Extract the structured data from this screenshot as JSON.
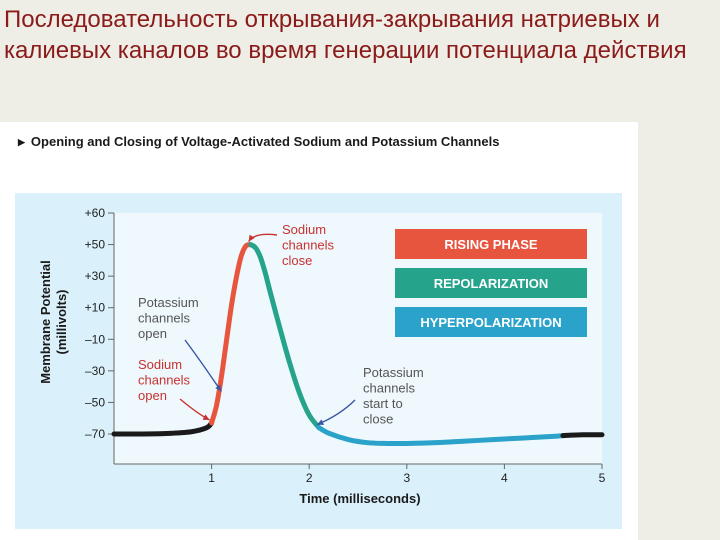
{
  "slide": {
    "title": "Последовательность открывания-закрывания натриевых и калиевых каналов во время генерации потенциала действия"
  },
  "figure": {
    "heading": "Opening and Closing of Voltage-Activated Sodium and Potassium Channels",
    "heading_marker_icon": "triangle-right-icon"
  },
  "chart_data": {
    "type": "line",
    "xlabel": "Time (milliseconds)",
    "ylabel_line1": "Membrane Potential",
    "ylabel_line2": "(millivolts)",
    "xlim": [
      0,
      5
    ],
    "ylim": [
      -80,
      60
    ],
    "x_ticks": [
      "1",
      "2",
      "3",
      "4",
      "5"
    ],
    "x_tick_values": [
      1,
      2,
      3,
      4,
      5
    ],
    "y_ticks": [
      "+60",
      "+50",
      "+30",
      "+10",
      "–10",
      "–30",
      "–50",
      "–70"
    ],
    "y_tick_values": [
      60,
      50,
      30,
      10,
      -10,
      -30,
      -50,
      -70
    ],
    "grid": false,
    "series": [
      {
        "segment": "resting",
        "color": "#1a1a1a",
        "x": [
          0,
          0.3,
          0.6,
          0.8,
          0.95,
          1.0
        ],
        "y": [
          -70,
          -70,
          -69.5,
          -68.5,
          -66,
          -63
        ]
      },
      {
        "segment": "rising",
        "color": "#e8553f",
        "x": [
          1.0,
          1.05,
          1.1,
          1.15,
          1.2,
          1.25,
          1.3,
          1.35,
          1.4
        ],
        "y": [
          -63,
          -52,
          -34,
          -12,
          10,
          28,
          42,
          49,
          50
        ]
      },
      {
        "segment": "repolarization",
        "color": "#26a38b",
        "x": [
          1.4,
          1.45,
          1.5,
          1.55,
          1.6,
          1.7,
          1.8,
          1.9,
          2.0,
          2.1
        ],
        "y": [
          50,
          48,
          42,
          32,
          20,
          -3,
          -25,
          -44,
          -58,
          -66
        ]
      },
      {
        "segment": "hyperpolarization",
        "color": "#2aa2c9",
        "x": [
          2.1,
          2.2,
          2.4,
          2.6,
          2.8,
          3.0,
          3.3,
          3.6,
          3.9,
          4.2,
          4.5,
          4.6
        ],
        "y": [
          -66,
          -69.5,
          -73.5,
          -75.5,
          -76,
          -76,
          -75.5,
          -74.5,
          -73.5,
          -72.5,
          -71.5,
          -71
        ]
      },
      {
        "segment": "resting-late",
        "color": "#1a1a1a",
        "x": [
          4.6,
          4.8,
          5.0
        ],
        "y": [
          -71,
          -70.5,
          -70.5
        ]
      }
    ],
    "legend": [
      {
        "label": "RISING PHASE",
        "color": "#e8553f"
      },
      {
        "label": "REPOLARIZATION",
        "color": "#26a38b"
      },
      {
        "label": "HYPERPOLARIZATION",
        "color": "#2aa2c9"
      }
    ],
    "annotations": [
      {
        "lines": [
          "Sodium",
          "channels",
          "close"
        ],
        "color": "#c8322f",
        "arrow_color": "#c8322f",
        "at": [
          1.4,
          50
        ]
      },
      {
        "lines": [
          "Potassium",
          "channels",
          "open"
        ],
        "color": "#555555",
        "arrow_color": "#3a57a6",
        "at": [
          1.12,
          -45
        ]
      },
      {
        "lines": [
          "Sodium",
          "channels",
          "open"
        ],
        "color": "#c8322f",
        "arrow_color": "#c8322f",
        "at": [
          1.0,
          -63
        ]
      },
      {
        "lines": [
          "Potassium",
          "channels",
          "start to",
          "close"
        ],
        "color": "#555555",
        "arrow_color": "#3a57a6",
        "at": [
          2.1,
          -66
        ]
      }
    ]
  }
}
